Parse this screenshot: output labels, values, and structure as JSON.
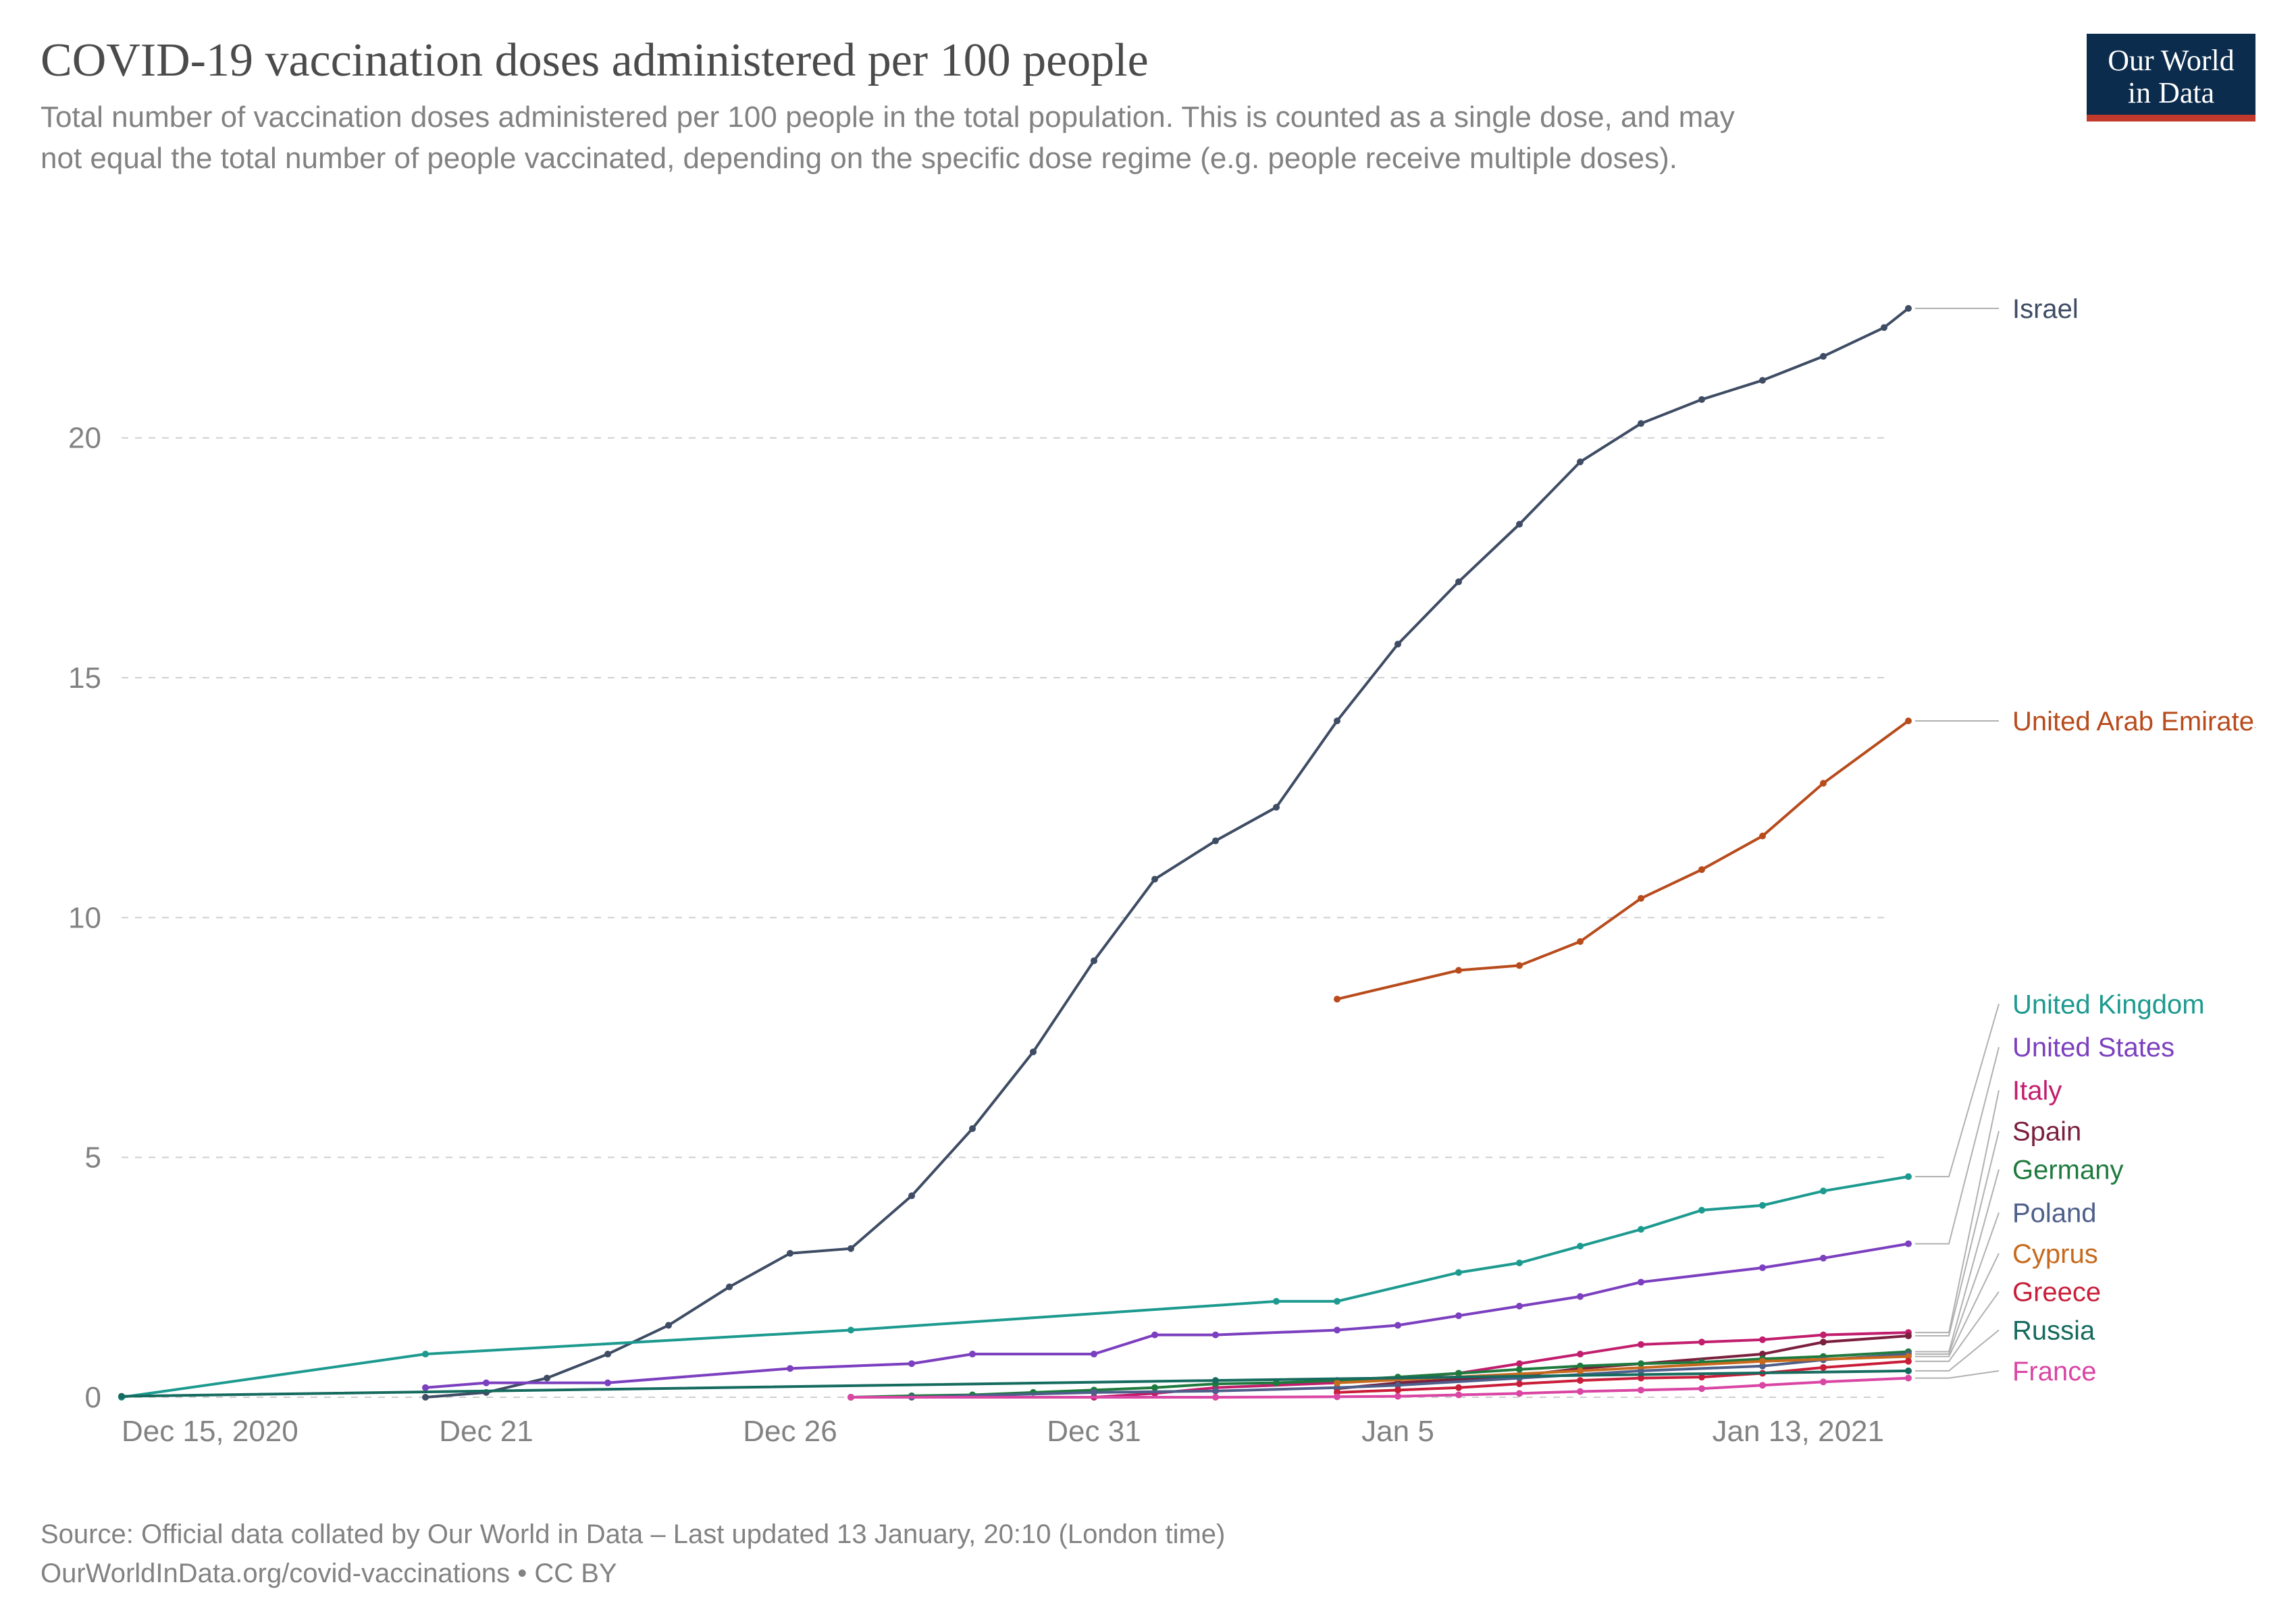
{
  "title": "COVID-19 vaccination doses administered per 100 people",
  "subtitle": "Total number of vaccination doses administered per 100 people in the total population. This is counted as a single dose, and may not equal the total number of people vaccinated, depending on the specific dose regime (e.g. people receive multiple doses).",
  "logo": {
    "line1": "Our World",
    "line2": "in Data"
  },
  "footer": {
    "line1": "Source: Official data collated by Our World in Data – Last updated 13 January, 20:10 (London time)",
    "line2": "OurWorldInData.org/covid-vaccinations • CC BY"
  },
  "chart": {
    "type": "line",
    "background_color": "#ffffff",
    "grid_color": "#cfcfcf",
    "axis_text_color": "#828282",
    "axis_fontsize": 44,
    "label_fontsize": 40,
    "line_width": 4,
    "marker_radius": 5,
    "xlim": [
      0,
      29
    ],
    "ylim": [
      0,
      23.5
    ],
    "yticks": [
      0,
      5,
      10,
      15,
      20
    ],
    "xticks": [
      {
        "x": 0,
        "label": "Dec 15, 2020"
      },
      {
        "x": 6,
        "label": "Dec 21"
      },
      {
        "x": 11,
        "label": "Dec 26"
      },
      {
        "x": 16,
        "label": "Dec 31"
      },
      {
        "x": 21,
        "label": "Jan 5"
      },
      {
        "x": 29,
        "label": "Jan 13, 2021"
      }
    ],
    "series": [
      {
        "name": "Israel",
        "color": "#3e4c64",
        "points": [
          {
            "x": 5,
            "y": 0.0
          },
          {
            "x": 6,
            "y": 0.1
          },
          {
            "x": 7,
            "y": 0.4
          },
          {
            "x": 8,
            "y": 0.9
          },
          {
            "x": 9,
            "y": 1.5
          },
          {
            "x": 10,
            "y": 2.3
          },
          {
            "x": 11,
            "y": 3.0
          },
          {
            "x": 12,
            "y": 3.1
          },
          {
            "x": 13,
            "y": 4.2
          },
          {
            "x": 14,
            "y": 5.6
          },
          {
            "x": 15,
            "y": 7.2
          },
          {
            "x": 16,
            "y": 9.1
          },
          {
            "x": 17,
            "y": 10.8
          },
          {
            "x": 18,
            "y": 11.6
          },
          {
            "x": 19,
            "y": 12.3
          },
          {
            "x": 20,
            "y": 14.1
          },
          {
            "x": 21,
            "y": 15.7
          },
          {
            "x": 22,
            "y": 17.0
          },
          {
            "x": 23,
            "y": 18.2
          },
          {
            "x": 24,
            "y": 19.5
          },
          {
            "x": 25,
            "y": 20.3
          },
          {
            "x": 26,
            "y": 20.8
          },
          {
            "x": 27,
            "y": 21.2
          },
          {
            "x": 28,
            "y": 21.7
          },
          {
            "x": 29,
            "y": 22.3
          },
          {
            "x": 29.4,
            "y": 22.7
          }
        ],
        "label_y": 22.7
      },
      {
        "name": "United Arab Emirates",
        "color": "#b84b1c",
        "points": [
          {
            "x": 20,
            "y": 8.3
          },
          {
            "x": 22,
            "y": 8.9
          },
          {
            "x": 23,
            "y": 9.0
          },
          {
            "x": 24,
            "y": 9.5
          },
          {
            "x": 25,
            "y": 10.4
          },
          {
            "x": 26,
            "y": 11.0
          },
          {
            "x": 27,
            "y": 11.7
          },
          {
            "x": 28,
            "y": 12.8
          },
          {
            "x": 29.4,
            "y": 14.1
          }
        ],
        "label_y": 14.1
      },
      {
        "name": "United Kingdom",
        "color": "#1d9a8f",
        "points": [
          {
            "x": 0,
            "y": 0.0
          },
          {
            "x": 5,
            "y": 0.9
          },
          {
            "x": 12,
            "y": 1.4
          },
          {
            "x": 19,
            "y": 2.0
          },
          {
            "x": 20,
            "y": 2.0
          },
          {
            "x": 22,
            "y": 2.6
          },
          {
            "x": 23,
            "y": 2.8
          },
          {
            "x": 24,
            "y": 3.15
          },
          {
            "x": 25,
            "y": 3.5
          },
          {
            "x": 26,
            "y": 3.9
          },
          {
            "x": 27,
            "y": 4.0
          },
          {
            "x": 28,
            "y": 4.3
          },
          {
            "x": 29.4,
            "y": 4.6
          }
        ],
        "label_y": 8.2
      },
      {
        "name": "United States",
        "color": "#7b3fbf",
        "points": [
          {
            "x": 5,
            "y": 0.2
          },
          {
            "x": 6,
            "y": 0.3
          },
          {
            "x": 8,
            "y": 0.3
          },
          {
            "x": 11,
            "y": 0.6
          },
          {
            "x": 13,
            "y": 0.7
          },
          {
            "x": 14,
            "y": 0.9
          },
          {
            "x": 16,
            "y": 0.9
          },
          {
            "x": 17,
            "y": 1.3
          },
          {
            "x": 18,
            "y": 1.3
          },
          {
            "x": 20,
            "y": 1.4
          },
          {
            "x": 21,
            "y": 1.5
          },
          {
            "x": 22,
            "y": 1.7
          },
          {
            "x": 23,
            "y": 1.9
          },
          {
            "x": 24,
            "y": 2.1
          },
          {
            "x": 25,
            "y": 2.4
          },
          {
            "x": 27,
            "y": 2.7
          },
          {
            "x": 28,
            "y": 2.9
          },
          {
            "x": 29.4,
            "y": 3.2
          }
        ],
        "label_y": 7.3
      },
      {
        "name": "Italy",
        "color": "#c21e6e",
        "points": [
          {
            "x": 12,
            "y": 0.0
          },
          {
            "x": 16,
            "y": 0.0
          },
          {
            "x": 17,
            "y": 0.08
          },
          {
            "x": 18,
            "y": 0.2
          },
          {
            "x": 20,
            "y": 0.3
          },
          {
            "x": 22,
            "y": 0.5
          },
          {
            "x": 23,
            "y": 0.7
          },
          {
            "x": 24,
            "y": 0.9
          },
          {
            "x": 25,
            "y": 1.1
          },
          {
            "x": 26,
            "y": 1.15
          },
          {
            "x": 27,
            "y": 1.2
          },
          {
            "x": 28,
            "y": 1.3
          },
          {
            "x": 29.4,
            "y": 1.35
          }
        ],
        "label_y": 6.4
      },
      {
        "name": "Spain",
        "color": "#7a1f3d",
        "points": [
          {
            "x": 20,
            "y": 0.18
          },
          {
            "x": 21,
            "y": 0.3
          },
          {
            "x": 23,
            "y": 0.45
          },
          {
            "x": 24,
            "y": 0.6
          },
          {
            "x": 27,
            "y": 0.9
          },
          {
            "x": 28,
            "y": 1.15
          },
          {
            "x": 29.4,
            "y": 1.28
          }
        ],
        "label_y": 5.55
      },
      {
        "name": "Germany",
        "color": "#1f7a3e",
        "points": [
          {
            "x": 12,
            "y": 0.0
          },
          {
            "x": 13,
            "y": 0.03
          },
          {
            "x": 14,
            "y": 0.05
          },
          {
            "x": 15,
            "y": 0.1
          },
          {
            "x": 16,
            "y": 0.15
          },
          {
            "x": 17,
            "y": 0.2
          },
          {
            "x": 18,
            "y": 0.28
          },
          {
            "x": 19,
            "y": 0.3
          },
          {
            "x": 20,
            "y": 0.35
          },
          {
            "x": 21,
            "y": 0.42
          },
          {
            "x": 22,
            "y": 0.5
          },
          {
            "x": 23,
            "y": 0.58
          },
          {
            "x": 24,
            "y": 0.65
          },
          {
            "x": 25,
            "y": 0.7
          },
          {
            "x": 26,
            "y": 0.73
          },
          {
            "x": 27,
            "y": 0.8
          },
          {
            "x": 28,
            "y": 0.85
          },
          {
            "x": 29.4,
            "y": 0.95
          }
        ],
        "label_y": 4.75
      },
      {
        "name": "Poland",
        "color": "#4d5f8a",
        "points": [
          {
            "x": 13,
            "y": 0.0
          },
          {
            "x": 16,
            "y": 0.1
          },
          {
            "x": 18,
            "y": 0.13
          },
          {
            "x": 20,
            "y": 0.2
          },
          {
            "x": 21,
            "y": 0.25
          },
          {
            "x": 23,
            "y": 0.4
          },
          {
            "x": 25,
            "y": 0.55
          },
          {
            "x": 27,
            "y": 0.65
          },
          {
            "x": 28,
            "y": 0.78
          },
          {
            "x": 29.4,
            "y": 0.9
          }
        ],
        "label_y": 3.85
      },
      {
        "name": "Cyprus",
        "color": "#c76a1e",
        "points": [
          {
            "x": 20,
            "y": 0.3
          },
          {
            "x": 24,
            "y": 0.55
          },
          {
            "x": 27,
            "y": 0.75
          },
          {
            "x": 29.4,
            "y": 0.85
          }
        ],
        "label_y": 3.0
      },
      {
        "name": "Greece",
        "color": "#c91e3a",
        "points": [
          {
            "x": 20,
            "y": 0.1
          },
          {
            "x": 21,
            "y": 0.15
          },
          {
            "x": 22,
            "y": 0.2
          },
          {
            "x": 23,
            "y": 0.28
          },
          {
            "x": 24,
            "y": 0.35
          },
          {
            "x": 25,
            "y": 0.4
          },
          {
            "x": 26,
            "y": 0.42
          },
          {
            "x": 27,
            "y": 0.5
          },
          {
            "x": 28,
            "y": 0.62
          },
          {
            "x": 29.4,
            "y": 0.75
          }
        ],
        "label_y": 2.2
      },
      {
        "name": "Russia",
        "color": "#166b5f",
        "points": [
          {
            "x": 0,
            "y": 0.02
          },
          {
            "x": 18,
            "y": 0.35
          },
          {
            "x": 29.4,
            "y": 0.55
          }
        ],
        "label_y": 1.4
      },
      {
        "name": "France",
        "color": "#d946a3",
        "points": [
          {
            "x": 12,
            "y": 0.0
          },
          {
            "x": 18,
            "y": 0.0
          },
          {
            "x": 20,
            "y": 0.01
          },
          {
            "x": 21,
            "y": 0.02
          },
          {
            "x": 22,
            "y": 0.05
          },
          {
            "x": 23,
            "y": 0.08
          },
          {
            "x": 24,
            "y": 0.12
          },
          {
            "x": 25,
            "y": 0.15
          },
          {
            "x": 26,
            "y": 0.18
          },
          {
            "x": 27,
            "y": 0.25
          },
          {
            "x": 28,
            "y": 0.32
          },
          {
            "x": 29.4,
            "y": 0.4
          }
        ],
        "label_y": 0.55
      }
    ]
  }
}
